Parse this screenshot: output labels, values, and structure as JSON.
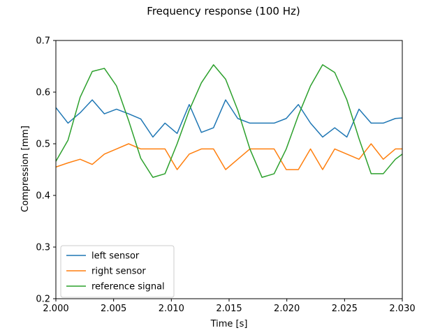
{
  "chart_data": {
    "type": "line",
    "title": "Frequency response (100 Hz)",
    "xlabel": "Time [s]",
    "ylabel": "Compression [mm]",
    "xlim": [
      2.0,
      2.03
    ],
    "ylim": [
      0.2,
      0.7
    ],
    "xticks": [
      "2.000",
      "2.005",
      "2.010",
      "2.015",
      "2.020",
      "2.025",
      "2.030"
    ],
    "yticks": [
      "0.2",
      "0.3",
      "0.4",
      "0.5",
      "0.6",
      "0.7"
    ],
    "grid": false,
    "legend_position": "lower-left",
    "x": [
      2.0,
      2.00105,
      2.0021,
      2.00315,
      2.0042,
      2.00525,
      2.0063,
      2.00735,
      2.0084,
      2.00945,
      2.0105,
      2.01155,
      2.0126,
      2.01365,
      2.0147,
      2.01575,
      2.0168,
      2.01785,
      2.0189,
      2.01995,
      2.021,
      2.02205,
      2.0231,
      2.02415,
      2.0252,
      2.02625,
      2.0273,
      2.02835,
      2.0294,
      2.03
    ],
    "series": [
      {
        "name": "left sensor",
        "color": "#1f77b4",
        "values": [
          0.57,
          0.54,
          0.56,
          0.585,
          0.558,
          0.567,
          0.558,
          0.548,
          0.513,
          0.54,
          0.52,
          0.576,
          0.522,
          0.531,
          0.585,
          0.549,
          0.54,
          0.54,
          0.54,
          0.549,
          0.576,
          0.54,
          0.513,
          0.531,
          0.513,
          0.567,
          0.54,
          0.54,
          0.549,
          0.55
        ]
      },
      {
        "name": "right sensor",
        "color": "#ff7f0e",
        "values": [
          0.455,
          0.463,
          0.47,
          0.46,
          0.48,
          0.49,
          0.5,
          0.49,
          0.49,
          0.49,
          0.45,
          0.48,
          0.49,
          0.49,
          0.45,
          0.47,
          0.49,
          0.49,
          0.49,
          0.45,
          0.45,
          0.49,
          0.45,
          0.49,
          0.48,
          0.47,
          0.5,
          0.47,
          0.49,
          0.49
        ]
      },
      {
        "name": "reference signal",
        "color": "#2ca02c",
        "values": [
          0.466,
          0.507,
          0.59,
          0.64,
          0.646,
          0.612,
          0.545,
          0.472,
          0.435,
          0.442,
          0.5,
          0.565,
          0.618,
          0.653,
          0.625,
          0.565,
          0.49,
          0.435,
          0.442,
          0.49,
          0.555,
          0.612,
          0.653,
          0.638,
          0.585,
          0.51,
          0.442,
          0.442,
          0.47,
          0.48
        ]
      }
    ]
  }
}
